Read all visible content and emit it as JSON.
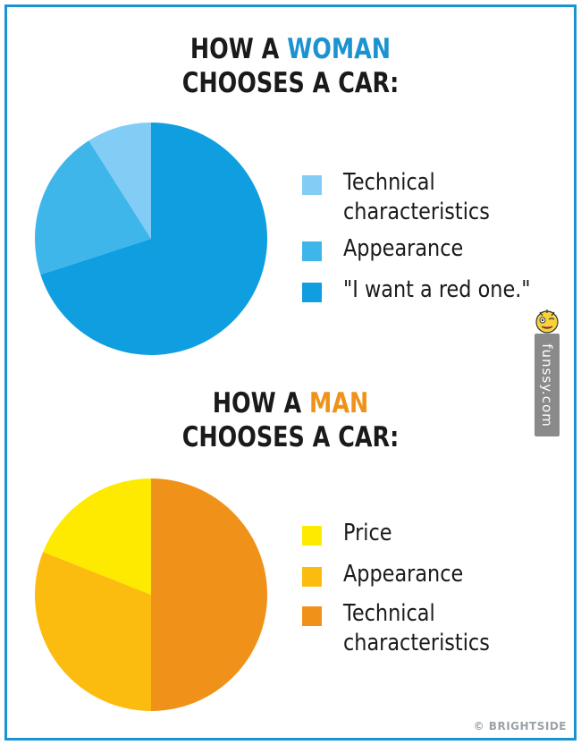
{
  "chart_data": [
    {
      "type": "pie",
      "title_parts": [
        "HOW A ",
        "WOMAN",
        "CHOOSES A CAR:"
      ],
      "accent_color": "#1b93d0",
      "slices": [
        {
          "label": "Technical characteristics",
          "label_lines": [
            "Technical",
            "characteristics"
          ],
          "value": 9,
          "color": "#82cdf5"
        },
        {
          "label": "Appearance",
          "label_lines": [
            "Appearance"
          ],
          "value": 21,
          "color": "#3fb6ea"
        },
        {
          "label": "\"I want a red one.\"",
          "label_lines": [
            "\"I want a red one.\""
          ],
          "value": 70,
          "color": "#0f9ee0"
        }
      ]
    },
    {
      "type": "pie",
      "title_parts": [
        "HOW A ",
        "MAN",
        "CHOOSES A CAR:"
      ],
      "accent_color": "#f0921a",
      "slices": [
        {
          "label": "Price",
          "label_lines": [
            "Price"
          ],
          "value": 19,
          "color": "#fdea00"
        },
        {
          "label": "Appearance",
          "label_lines": [
            "Appearance"
          ],
          "value": 31,
          "color": "#fcbc0f"
        },
        {
          "label": "Technical characteristics",
          "label_lines": [
            "Technical",
            "characteristics"
          ],
          "value": 50,
          "color": "#f0921a"
        }
      ]
    }
  ],
  "watermark": {
    "text": "funssy.com",
    "icon": "mascot-icon"
  },
  "credit": "© BRIGHTSIDE"
}
